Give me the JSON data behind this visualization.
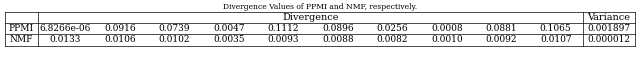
{
  "title": "Divergence Values of PPMI and NMF, respectively.",
  "col_header_main": "Divergence",
  "col_header_last": "Variance",
  "row_labels": [
    "PPMI",
    "NMF"
  ],
  "divergence_values": [
    [
      "6.8266e-06",
      "0.0916",
      "0.0739",
      "0.0047",
      "0.1112",
      "0.0896",
      "0.0256",
      "0.0008",
      "0.0881",
      "0.1065"
    ],
    [
      "0.0133",
      "0.0106",
      "0.0102",
      "0.0035",
      "0.0093",
      "0.0088",
      "0.0082",
      "0.0010",
      "0.0092",
      "0.0107"
    ]
  ],
  "variance_values": [
    "0.001897",
    "0.000012"
  ],
  "bg_color": "#ffffff",
  "text_color": "#000000",
  "title_fontsize": 5.5,
  "header_fontsize": 7.0,
  "cell_fontsize": 6.5,
  "lw": 0.5
}
